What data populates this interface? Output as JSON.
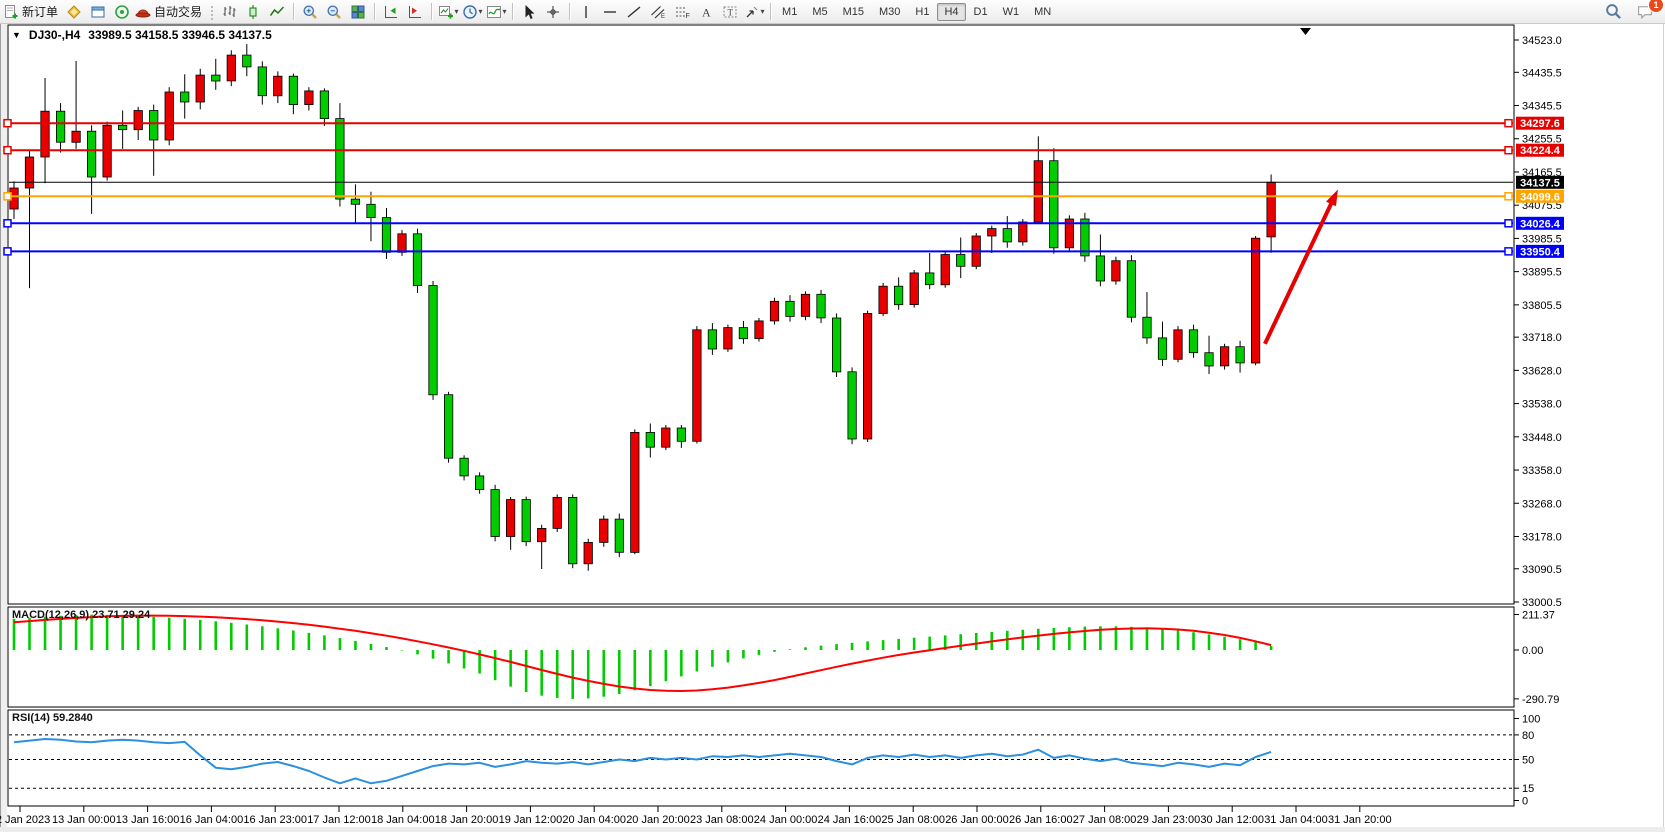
{
  "toolbar": {
    "new_order_label": "新订单",
    "auto_trading_label": "自动交易",
    "timeframes": [
      "M1",
      "M5",
      "M15",
      "M30",
      "H1",
      "H4",
      "D1",
      "W1",
      "MN"
    ],
    "active_timeframe": "H4",
    "notification_count": "1",
    "icon_glyphs": {
      "dropdown-arrow": "▾",
      "collapse-arrow": "▼",
      "shift-marker": "▼"
    }
  },
  "chart": {
    "collapse_glyph": "▼",
    "symbol_period": "DJ30-,H4",
    "ohlc_text": "33989.5 34158.5 33946.5 34137.5",
    "shift_marker_glyph": "▼"
  },
  "chart_data": [
    {
      "type": "candlestick",
      "title": "DJ30-,H4",
      "up_color": "#e80000",
      "down_color": "#00cc00",
      "wick_color": "#000000",
      "y_axis": {
        "side": "right",
        "min": 33000.5,
        "max": 34523.0,
        "tick_labels": [
          "34523.0",
          "34435.5",
          "34345.5",
          "34255.5",
          "34165.5",
          "34075.5",
          "33985.5",
          "33895.5",
          "33805.5",
          "33718.0",
          "33628.0",
          "33538.0",
          "33448.0",
          "33358.0",
          "33268.0",
          "33178.0",
          "33090.5",
          "33000.5"
        ]
      },
      "x_axis": {
        "labels": [
          "12 Jan 2023",
          "13 Jan 00:00",
          "13 Jan 16:00",
          "16 Jan 04:00",
          "16 Jan 23:00",
          "17 Jan 12:00",
          "18 Jan 04:00",
          "18 Jan 20:00",
          "19 Jan 12:00",
          "20 Jan 04:00",
          "20 Jan 20:00",
          "23 Jan 08:00",
          "24 Jan 00:00",
          "24 Jan 16:00",
          "25 Jan 08:00",
          "26 Jan 00:00",
          "26 Jan 16:00",
          "27 Jan 08:00",
          "29 Jan 23:00",
          "30 Jan 12:00",
          "31 Jan 04:00",
          "31 Jan 20:00"
        ]
      },
      "candles": [
        [
          34065,
          34140,
          34038,
          34122
        ],
        [
          34122,
          34225,
          33851,
          34206
        ],
        [
          34206,
          34420,
          34135,
          34330
        ],
        [
          34330,
          34352,
          34218,
          34246
        ],
        [
          34246,
          34466,
          34228,
          34276
        ],
        [
          34276,
          34292,
          34052,
          34152
        ],
        [
          34152,
          34302,
          34142,
          34292
        ],
        [
          34292,
          34332,
          34228,
          34280
        ],
        [
          34280,
          34342,
          34252,
          34332
        ],
        [
          34332,
          34348,
          34155,
          34252
        ],
        [
          34252,
          34395,
          34238,
          34382
        ],
        [
          34382,
          34430,
          34310,
          34355
        ],
        [
          34355,
          34445,
          34335,
          34428
        ],
        [
          34428,
          34472,
          34388,
          34412
        ],
        [
          34412,
          34495,
          34398,
          34482
        ],
        [
          34482,
          34512,
          34425,
          34450
        ],
        [
          34450,
          34465,
          34348,
          34372
        ],
        [
          34372,
          34438,
          34352,
          34425
        ],
        [
          34425,
          34432,
          34322,
          34348
        ],
        [
          34348,
          34395,
          34332,
          34385
        ],
        [
          34385,
          34392,
          34290,
          34310
        ],
        [
          34310,
          34352,
          34072,
          34092
        ],
        [
          34092,
          34132,
          34026,
          34078
        ],
        [
          34078,
          34112,
          33978,
          34042
        ],
        [
          34042,
          34068,
          33930,
          33948
        ],
        [
          33948,
          34008,
          33938,
          33998
        ],
        [
          33998,
          34012,
          33838,
          33858
        ],
        [
          33858,
          33870,
          33548,
          33562
        ],
        [
          33562,
          33570,
          33378,
          33390
        ],
        [
          33390,
          33398,
          33330,
          33342
        ],
        [
          33342,
          33352,
          33294,
          33305
        ],
        [
          33305,
          33318,
          33165,
          33178
        ],
        [
          33178,
          33285,
          33142,
          33278
        ],
        [
          33278,
          33286,
          33152,
          33164
        ],
        [
          33164,
          33210,
          33090,
          33200
        ],
        [
          33200,
          33292,
          33190,
          33284
        ],
        [
          33284,
          33292,
          33092,
          33104
        ],
        [
          33104,
          33172,
          33085,
          33162
        ],
        [
          33162,
          33235,
          33150,
          33225
        ],
        [
          33225,
          33240,
          33122,
          33135
        ],
        [
          33135,
          33468,
          33130,
          33460
        ],
        [
          33460,
          33484,
          33392,
          33420
        ],
        [
          33420,
          33480,
          33412,
          33472
        ],
        [
          33472,
          33480,
          33418,
          33436
        ],
        [
          33436,
          33748,
          33430,
          33738
        ],
        [
          33738,
          33756,
          33670,
          33686
        ],
        [
          33686,
          33752,
          33678,
          33744
        ],
        [
          33744,
          33762,
          33700,
          33714
        ],
        [
          33714,
          33770,
          33706,
          33762
        ],
        [
          33762,
          33825,
          33752,
          33815
        ],
        [
          33815,
          33832,
          33760,
          33774
        ],
        [
          33774,
          33842,
          33764,
          33834
        ],
        [
          33834,
          33846,
          33756,
          33770
        ],
        [
          33770,
          33782,
          33610,
          33624
        ],
        [
          33624,
          33636,
          33428,
          33442
        ],
        [
          33442,
          33790,
          33434,
          33782
        ],
        [
          33782,
          33865,
          33775,
          33856
        ],
        [
          33856,
          33880,
          33792,
          33806
        ],
        [
          33806,
          33900,
          33798,
          33892
        ],
        [
          33892,
          33946,
          33848,
          33860
        ],
        [
          33860,
          33950,
          33852,
          33942
        ],
        [
          33942,
          33988,
          33878,
          33910
        ],
        [
          33910,
          34000,
          33902,
          33992
        ],
        [
          33992,
          34020,
          33946,
          34012
        ],
        [
          34012,
          34046,
          33960,
          33976
        ],
        [
          33976,
          34038,
          33966,
          34030
        ],
        [
          34030,
          34262,
          34024,
          34196
        ],
        [
          34196,
          34230,
          33944,
          33960
        ],
        [
          33960,
          34048,
          33950,
          34038
        ],
        [
          34038,
          34055,
          33922,
          33938
        ],
        [
          33938,
          33996,
          33856,
          33870
        ],
        [
          33870,
          33936,
          33860,
          33925
        ],
        [
          33925,
          33940,
          33758,
          33772
        ],
        [
          33772,
          33840,
          33700,
          33716
        ],
        [
          33716,
          33760,
          33640,
          33658
        ],
        [
          33658,
          33748,
          33650,
          33738
        ],
        [
          33738,
          33752,
          33662,
          33676
        ],
        [
          33676,
          33722,
          33618,
          33640
        ],
        [
          33640,
          33700,
          33630,
          33692
        ],
        [
          33692,
          33708,
          33622,
          33648
        ],
        [
          33648,
          33992,
          33642,
          33986
        ],
        [
          33989.5,
          34158.5,
          33946.5,
          34137.5
        ]
      ],
      "levels": [
        {
          "price": 34297.6,
          "label": "34297.6",
          "color": "#e60000",
          "width": 2,
          "handles": true
        },
        {
          "price": 34224.4,
          "label": "34224.4",
          "color": "#e60000",
          "width": 2,
          "handles": true
        },
        {
          "price": 34137.5,
          "label": "34137.5",
          "color": "#000000",
          "width": 1,
          "handles": false,
          "current": true
        },
        {
          "price": 34099.6,
          "label": "34099.6",
          "color": "#ffa500",
          "width": 2,
          "handles": true
        },
        {
          "price": 34026.4,
          "label": "34026.4",
          "color": "#0000ff",
          "width": 2,
          "handles": true
        },
        {
          "price": 33950.4,
          "label": "33950.4",
          "color": "#0000ff",
          "width": 2,
          "handles": true
        }
      ],
      "annotations": {
        "arrow": {
          "from_bar": 80.6,
          "from_price": 33700,
          "to_bar": 85.3,
          "to_price": 34118,
          "color": "#e60000"
        }
      }
    },
    {
      "type": "bar",
      "name": "MACD",
      "label": "MACD(12,26,9) 23.71 29.24",
      "params": "12,26,9",
      "histogram_color": "#00cc00",
      "signal_color": "#ff0000",
      "y_ticks": [
        "211.37",
        "0.00",
        "-290.79"
      ],
      "y_tick_values": [
        211.37,
        0.0,
        -290.79
      ],
      "current_values": [
        23.71,
        29.24
      ],
      "histogram": [
        186,
        192,
        198,
        204,
        209,
        211,
        209,
        206,
        202,
        197,
        192,
        186,
        179,
        171,
        162,
        152,
        141,
        129,
        116,
        102,
        87,
        71,
        54,
        36,
        17,
        -3,
        -26,
        -52,
        -80,
        -110,
        -140,
        -180,
        -218,
        -250,
        -272,
        -285,
        -291,
        -288,
        -278,
        -262,
        -240,
        -214,
        -186,
        -157,
        -128,
        -100,
        -74,
        -50,
        -29,
        -11,
        4,
        16,
        26,
        35,
        43,
        51,
        59,
        66,
        73,
        80,
        87,
        94,
        101,
        108,
        114,
        120,
        126,
        131,
        136,
        139,
        141,
        141,
        138,
        133,
        126,
        117,
        106,
        93,
        79,
        64,
        49,
        23.71
      ],
      "signal": [
        165,
        172,
        179,
        185,
        191,
        196,
        200,
        203,
        205,
        205,
        204,
        202,
        199,
        195,
        190,
        184,
        177,
        169,
        160,
        150,
        139,
        127,
        114,
        100,
        85,
        69,
        52,
        34,
        15,
        -5,
        -26,
        -48,
        -71,
        -95,
        -119,
        -142,
        -164,
        -184,
        -202,
        -217,
        -229,
        -238,
        -243,
        -244,
        -241,
        -234,
        -224,
        -211,
        -196,
        -179,
        -160,
        -140,
        -120,
        -100,
        -81,
        -63,
        -46,
        -30,
        -15,
        -1,
        12,
        25,
        38,
        51,
        63,
        75,
        86,
        96,
        105,
        113,
        120,
        125,
        128,
        129,
        127,
        122,
        114,
        103,
        89,
        72,
        52,
        29.24
      ]
    },
    {
      "type": "line",
      "name": "RSI",
      "label": "RSI(14) 59.2840",
      "period": 14,
      "line_color": "#2b90e0",
      "level_lines": [
        80,
        50,
        15
      ],
      "y_ticks": [
        "100",
        "80",
        "50",
        "15",
        "0"
      ],
      "y_tick_values": [
        100,
        80,
        50,
        15,
        0
      ],
      "current_value": 59.284,
      "values": [
        71,
        73,
        75,
        74,
        72,
        71,
        73,
        74,
        73,
        71,
        70,
        71.5,
        55,
        40,
        38,
        41,
        45,
        47,
        42,
        36,
        28,
        21,
        27,
        21,
        24,
        30,
        36,
        42,
        45,
        44,
        46,
        41,
        44,
        48,
        46,
        45,
        47,
        44,
        47,
        50,
        48,
        52,
        50,
        52,
        50,
        54,
        53,
        55,
        53,
        55,
        57,
        55,
        53,
        48,
        44,
        52,
        55,
        53,
        56,
        53,
        55,
        52,
        55,
        57,
        54,
        56,
        62,
        52,
        55,
        51,
        48,
        51,
        46,
        44,
        42,
        46,
        44,
        41,
        45,
        43,
        53,
        59.28
      ]
    }
  ]
}
